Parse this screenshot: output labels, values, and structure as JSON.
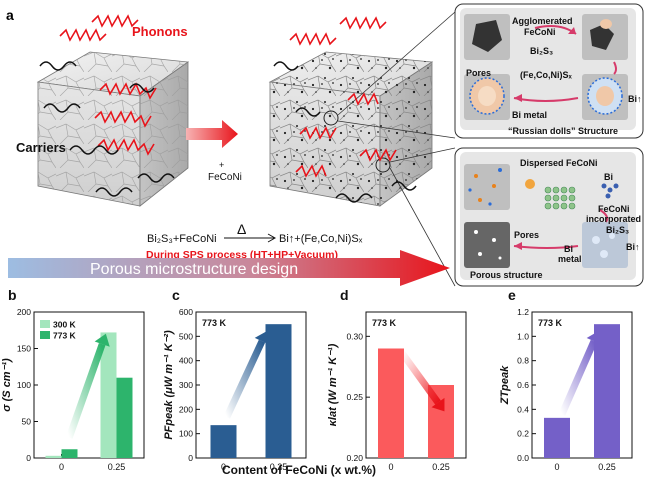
{
  "panel_a": {
    "letter": "a",
    "phonons": "Phonons",
    "carriers": "Carriers",
    "plus": "+",
    "additive": "FeCoNi",
    "reaction_left": "Bi₂S₃+FeCoNi",
    "reaction_symbol": "Δ",
    "reaction_right": "Bi↑+(Fe,Co,Ni)Sₓ",
    "process": "During SPS process (HT+HP+Vacuum)",
    "banner": "Porous microstructure design",
    "inset_top": {
      "agglomerated": "Agglomerated",
      "feconi": "FeCoNi",
      "bi2s3": "Bi₂S₃",
      "pores": "Pores",
      "sulfide": "(Fe,Co,Ni)Sₓ",
      "bi_metal": "Bi metal",
      "bi_up": "Bi↑",
      "caption": "“Russian dolls” Structure"
    },
    "inset_bottom": {
      "dispersed": "Dispersed FeCoNi",
      "bi": "Bi",
      "feconi": "FeCoNi",
      "incorporated": "incorporated",
      "bi2s3": "Bi₂S₃",
      "pores": "Pores",
      "bi_metal_1": "Bi",
      "bi_metal_2": "metal",
      "bi_up": "Bi↑",
      "caption": "Porous structure"
    }
  },
  "shared_xlabel": "Content of FeCoNi (x wt.%)",
  "colors": {
    "red": "#e8141b",
    "green_light": "#a3e6bd",
    "green_dark": "#2db46c",
    "blue": "#2a5d92",
    "red_bar": "#fb5a5c",
    "purple": "#7460c8",
    "banner_start": "#8fb2dc",
    "banner_end": "#e8141b"
  },
  "chart_data": [
    {
      "panel": "b",
      "type": "bar",
      "ylabel": "σ (S cm⁻¹)",
      "categories": [
        "0",
        "0.25"
      ],
      "series": [
        {
          "name": "300 K",
          "values": [
            3,
            172
          ]
        },
        {
          "name": "773 K",
          "values": [
            12,
            110
          ]
        }
      ],
      "ylim": [
        0,
        200
      ],
      "yticks": [
        "0",
        "50",
        "100",
        "150",
        "200"
      ],
      "legend": "top-left"
    },
    {
      "panel": "c",
      "type": "bar",
      "ylabel": "PFpeak (μW m⁻¹ K⁻²)",
      "annotation": "773 K",
      "categories": [
        "0",
        "0.25"
      ],
      "values": [
        135,
        550
      ],
      "ylim": [
        0,
        600
      ],
      "yticks": [
        "0",
        "100",
        "200",
        "300",
        "400",
        "500",
        "600"
      ]
    },
    {
      "panel": "d",
      "type": "bar",
      "ylabel": "κlat (W m⁻¹ K⁻¹)",
      "annotation": "773 K",
      "categories": [
        "0",
        "0.25"
      ],
      "values": [
        0.29,
        0.26
      ],
      "ylim": [
        0.2,
        0.32
      ],
      "yticks": [
        "0.20",
        "0.25",
        "0.30"
      ]
    },
    {
      "panel": "e",
      "type": "bar",
      "ylabel": "ZTpeak",
      "annotation": "773 K",
      "categories": [
        "0",
        "0.25"
      ],
      "values": [
        0.33,
        1.1
      ],
      "ylim": [
        0,
        1.2
      ],
      "yticks": [
        "0.0",
        "0.2",
        "0.4",
        "0.6",
        "0.8",
        "1.0",
        "1.2"
      ]
    }
  ]
}
